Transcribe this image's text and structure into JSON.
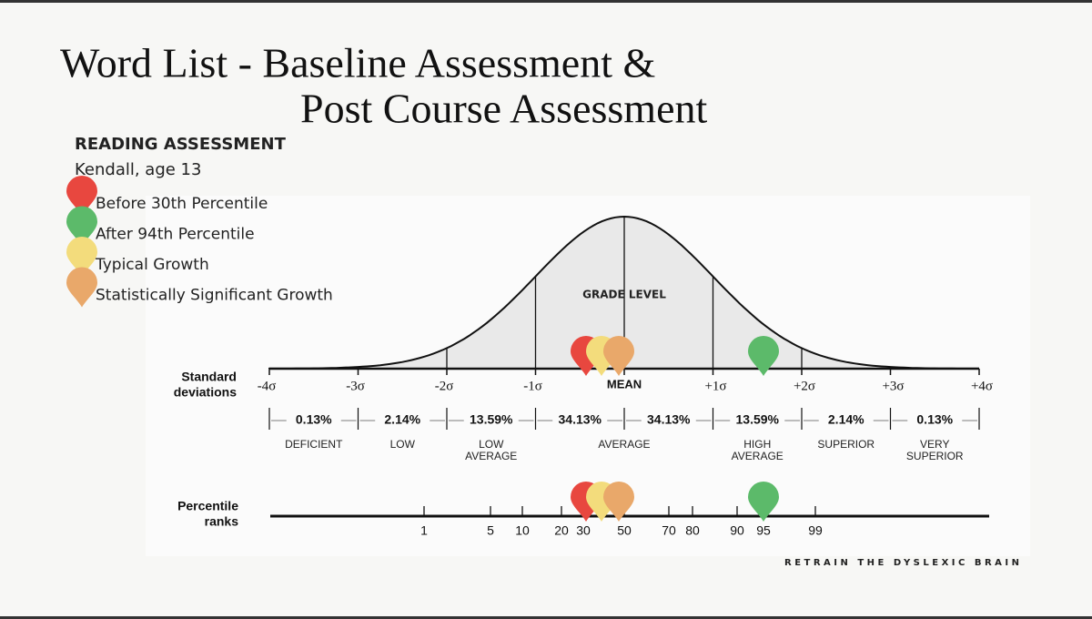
{
  "title": {
    "line1": "Word List - Baseline Assessment &",
    "line2": "Post Course Assessment"
  },
  "heading": "READING ASSESSMENT",
  "subject": "Kendall, age 13",
  "legend": [
    {
      "label": "Before 30th Percentile",
      "color": "#e8473f"
    },
    {
      "label": "After 94th Percentile",
      "color": "#5cba6a"
    },
    {
      "label": "Typical Growth",
      "color": "#f3dc7c"
    },
    {
      "label": "Statistically Significant Growth",
      "color": "#e9a86a"
    }
  ],
  "curve": {
    "grade_level": "GRADE LEVEL",
    "mean": "MEAN",
    "sd_label": [
      "Standard",
      "deviations"
    ],
    "sigmas": [
      "-4σ",
      "-3σ",
      "-2σ",
      "-1σ",
      "+1σ",
      "+2σ",
      "+3σ",
      "+4σ"
    ],
    "percents": [
      "0.13%",
      "2.14%",
      "13.59%",
      "34.13%",
      "34.13%",
      "13.59%",
      "2.14%",
      "0.13%"
    ],
    "bands": [
      [
        "DEFICIENT"
      ],
      [
        "LOW"
      ],
      [
        "LOW",
        "AVERAGE"
      ],
      [
        "AVERAGE"
      ],
      [
        "HIGH",
        "AVERAGE"
      ],
      [
        "SUPERIOR"
      ],
      [
        "VERY",
        "SUPERIOR"
      ]
    ],
    "percentile_label": [
      "Percentile",
      "ranks"
    ],
    "percentiles": [
      "1",
      "5",
      "10",
      "20",
      "30",
      "50",
      "70",
      "80",
      "90",
      "95",
      "99"
    ]
  },
  "footer": "RETRAIN THE DYSLEXIC BRAIN"
}
